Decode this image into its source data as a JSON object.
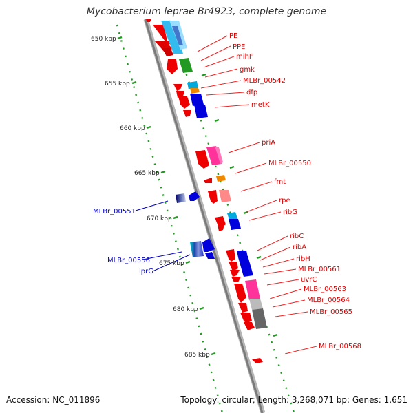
{
  "title": "Mycobacterium leprae Br4923, complete genome",
  "footer": {
    "accession": "Accession: NC_011896",
    "topology": "Topology: circular; Length: 3,268,071 bp; Genes: 1,651"
  },
  "colors": {
    "forward_label": "#dd0000",
    "reverse_label": "#0000bb",
    "backbone": "#888888",
    "dots": "#229922"
  },
  "ticks": [
    {
      "label": "650 kbp"
    },
    {
      "label": "655 kbp"
    },
    {
      "label": "660 kbp"
    },
    {
      "label": "665 kbp"
    },
    {
      "label": "670 kbp"
    },
    {
      "label": "675 kbp"
    },
    {
      "label": "680 kbp"
    },
    {
      "label": "685 kbp"
    }
  ],
  "labels_right": [
    "PE",
    "PPE",
    "mihF",
    "gmk",
    "MLBr_00542",
    "dfp",
    "metK",
    "priA",
    "MLBr_00550",
    "fmt",
    "rpe",
    "ribG",
    "ribC",
    "ribA",
    "ribH",
    "MLBr_00561",
    "uvrC",
    "MLBr_00563",
    "MLBr_00564",
    "MLBr_00565",
    "MLBr_00568"
  ],
  "labels_left": [
    "MLBr_00551",
    "MLBr_00556",
    "lprG"
  ]
}
